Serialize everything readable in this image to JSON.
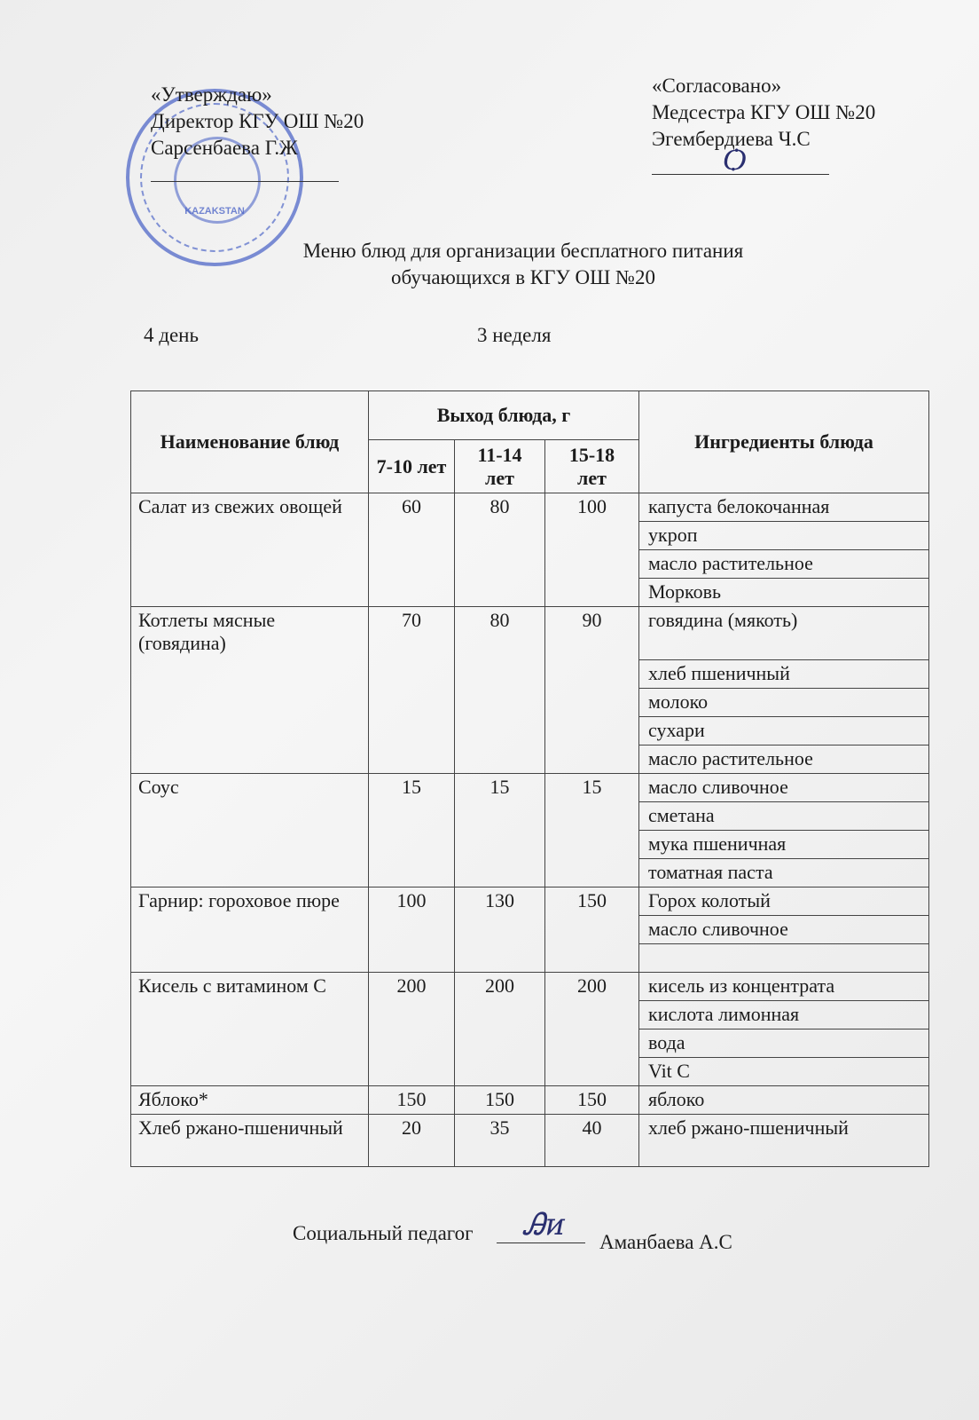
{
  "approval_left": {
    "line1": "«Утверждаю»",
    "line2": "Директор КГУ ОШ №20",
    "line3": "Сарсенбаева Г.Ж"
  },
  "approval_right": {
    "line1": "«Согласовано»",
    "line2": "Медсестра КГУ ОШ №20",
    "line3": "Эгембердиева Ч.С"
  },
  "stamp": {
    "text": "KAZAKSTAN",
    "color": "#2846be"
  },
  "title": {
    "line1": "Меню блюд для организации бесплатного питания",
    "line2": "обучающихся в КГУ ОШ №20"
  },
  "day": "4 день",
  "week": "3 неделя",
  "table": {
    "headers": {
      "name": "Наименование блюд",
      "output": "Выход блюда, г",
      "ingredients": "Ингредиенты блюда",
      "ages": [
        "7-10 лет",
        "11-14 лет",
        "15-18 лет"
      ]
    },
    "rows": [
      {
        "name": "Салат из свежих овощей",
        "values": [
          "60",
          "80",
          "100"
        ],
        "ingredients": [
          "капуста белокочанная",
          "укроп",
          "масло растительное",
          "Морковь"
        ]
      },
      {
        "name": "Котлеты мясные (говядина)",
        "values": [
          "70",
          "80",
          "90"
        ],
        "ingredients": [
          "говядина (мякоть)",
          "хлеб пшеничный",
          "молоко",
          "сухари",
          "масло растительное"
        ]
      },
      {
        "name": "Соус",
        "values": [
          "15",
          "15",
          "15"
        ],
        "ingredients": [
          "масло сливочное",
          "сметана",
          "мука пшеничная",
          "томатная паста"
        ]
      },
      {
        "name": "Гарнир: гороховое пюре",
        "values": [
          "100",
          "130",
          "150"
        ],
        "ingredients": [
          "Горох колотый",
          "масло сливочное",
          ""
        ]
      },
      {
        "name": "Кисель с витамином С",
        "values": [
          "200",
          "200",
          "200"
        ],
        "ingredients": [
          "кисель из концентрата",
          "кислота лимонная",
          "вода",
          "Vit C"
        ]
      },
      {
        "name": "Яблоко*",
        "values": [
          "150",
          "150",
          "150"
        ],
        "ingredients": [
          "яблоко"
        ]
      },
      {
        "name": "Хлеб ржано-пшеничный",
        "values": [
          "20",
          "35",
          "40"
        ],
        "ingredients": [
          "хлеб ржано-пшеничный"
        ]
      }
    ]
  },
  "footer": {
    "role": "Социальный педагог",
    "name": "Аманбаева А.С"
  }
}
